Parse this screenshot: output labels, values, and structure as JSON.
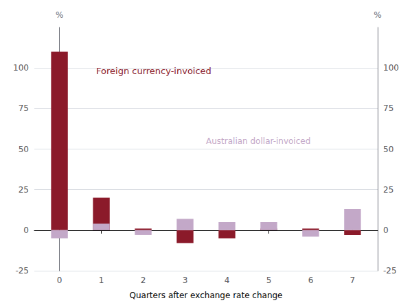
{
  "chart_data": {
    "type": "bar",
    "xlabel": "Quarters after exchange rate change",
    "ylabel": "%",
    "y2label": "%",
    "x": [
      0,
      1,
      2,
      3,
      4,
      5,
      6,
      7
    ],
    "xlim": [
      -0.6,
      7.6
    ],
    "xticks": [
      0,
      1,
      2,
      3,
      4,
      5,
      6,
      7
    ],
    "series": [
      {
        "name": "Foreign currency-invoiced",
        "color": "#8B1A2A",
        "values": [
          110,
          20,
          1,
          -8,
          -5,
          1,
          1,
          -3
        ]
      },
      {
        "name": "Australian dollar-invoiced",
        "color": "#C3A8C8",
        "values": [
          -5,
          4,
          -3,
          7,
          5,
          5,
          -4,
          13
        ]
      }
    ],
    "ylim": [
      -25,
      125
    ],
    "yticks": [
      -25,
      0,
      25,
      50,
      75,
      100
    ],
    "y2lim": [
      -25,
      125
    ],
    "y2ticks": [
      -25,
      0,
      25,
      50,
      75,
      100
    ],
    "grid": true,
    "annotations": [
      {
        "text": "Foreign currency-invoiced",
        "color": "#8B1A2A"
      },
      {
        "text": "Australian dollar-invoiced",
        "color": "#C3A8C8"
      }
    ]
  }
}
